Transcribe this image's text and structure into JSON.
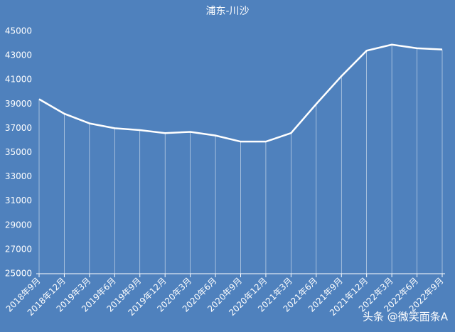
{
  "chart_data": {
    "type": "line",
    "title": "浦东-川沙",
    "categories": [
      "2018年9月",
      "2018年12月",
      "2019年3月",
      "2019年6月",
      "2019年9月",
      "2019年12月",
      "2020年3月",
      "2020年6月",
      "2020年9月",
      "2020年12月",
      "2021年3月",
      "2021年6月",
      "2021年9月",
      "2021年12月",
      "2022年3月",
      "2022年6月",
      "2022年9月"
    ],
    "series": [
      {
        "name": "浦东-川沙",
        "color": "#ffffff",
        "values": [
          39400,
          38200,
          37400,
          37000,
          36850,
          36600,
          36700,
          36400,
          35900,
          35900,
          36600,
          39000,
          41300,
          43400,
          43900,
          43600,
          43500
        ]
      }
    ],
    "ylim": [
      25000,
      45000
    ],
    "yticks": [
      25000,
      27000,
      29000,
      31000,
      33000,
      35000,
      37000,
      39000,
      41000,
      43000,
      45000
    ],
    "drop_lines": true,
    "background": "#4f81bd",
    "watermark": "头条 @微笑面条A"
  }
}
